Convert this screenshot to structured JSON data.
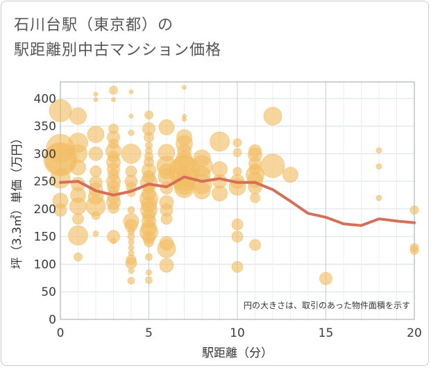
{
  "title": {
    "line1": "石川台駅（東京都）の",
    "line2": "駅距離別中古マンション価格"
  },
  "note": "円の大きさは、取引のあった物件面積を示す",
  "colors": {
    "bubble": "#f2bd63",
    "line": "#d4705a",
    "grid": "#d9dfe6",
    "plot_border": "#9aa4b0"
  },
  "chart_data": {
    "type": "scatter",
    "xlabel": "駅距離（分）",
    "ylabel": "坪（3.3㎡）単価（万円）",
    "xlim": [
      0,
      20
    ],
    "ylim": [
      0,
      430
    ],
    "x_ticks": [
      0,
      5,
      10,
      15,
      20
    ],
    "y_ticks": [
      0,
      50,
      100,
      150,
      200,
      250,
      300,
      350,
      400
    ],
    "grid": true,
    "series": [
      {
        "kind": "bubbles",
        "points": [
          [
            0,
            378,
            16
          ],
          [
            0,
            310,
            20
          ],
          [
            0,
            290,
            24
          ],
          [
            0,
            290,
            22
          ],
          [
            0,
            255,
            14
          ],
          [
            0,
            215,
            11
          ],
          [
            0,
            198,
            9
          ],
          [
            1,
            368,
            12
          ],
          [
            1,
            320,
            14
          ],
          [
            1,
            300,
            13
          ],
          [
            1,
            275,
            11
          ],
          [
            1,
            245,
            10
          ],
          [
            1,
            225,
            11
          ],
          [
            1,
            205,
            12
          ],
          [
            1,
            182,
            8
          ],
          [
            1,
            152,
            14
          ],
          [
            1,
            113,
            6
          ],
          [
            2,
            408,
            3
          ],
          [
            2,
            398,
            3
          ],
          [
            2,
            335,
            12
          ],
          [
            2,
            300,
            10
          ],
          [
            2,
            268,
            8
          ],
          [
            2,
            248,
            9
          ],
          [
            2,
            235,
            10
          ],
          [
            2,
            222,
            11
          ],
          [
            2,
            205,
            14
          ],
          [
            2,
            188,
            6
          ],
          [
            2,
            155,
            4
          ],
          [
            3,
            415,
            6
          ],
          [
            3,
            398,
            3
          ],
          [
            3,
            345,
            7
          ],
          [
            3,
            330,
            9
          ],
          [
            3,
            318,
            7
          ],
          [
            3,
            305,
            11
          ],
          [
            3,
            295,
            8
          ],
          [
            3,
            285,
            10
          ],
          [
            3,
            272,
            9
          ],
          [
            3,
            262,
            8
          ],
          [
            3,
            250,
            10
          ],
          [
            3,
            240,
            9
          ],
          [
            3,
            232,
            7
          ],
          [
            3,
            222,
            9
          ],
          [
            3,
            212,
            10
          ],
          [
            3,
            202,
            8
          ],
          [
            3,
            150,
            9
          ],
          [
            3,
            142,
            4
          ],
          [
            4,
            412,
            3
          ],
          [
            4,
            368,
            3
          ],
          [
            4,
            338,
            4
          ],
          [
            4,
            300,
            14
          ],
          [
            4,
            268,
            8
          ],
          [
            4,
            250,
            9
          ],
          [
            4,
            240,
            7
          ],
          [
            4,
            230,
            6
          ],
          [
            4,
            198,
            5
          ],
          [
            4,
            178,
            11
          ],
          [
            4,
            170,
            9
          ],
          [
            4,
            160,
            5
          ],
          [
            4,
            150,
            5
          ],
          [
            4,
            140,
            4
          ],
          [
            4,
            130,
            4
          ],
          [
            4,
            120,
            4
          ],
          [
            4,
            108,
            7
          ],
          [
            4,
            102,
            8
          ],
          [
            4,
            88,
            4
          ],
          [
            4,
            70,
            5
          ],
          [
            5,
            370,
            6
          ],
          [
            5,
            345,
            9
          ],
          [
            5,
            330,
            7
          ],
          [
            5,
            315,
            5
          ],
          [
            5,
            305,
            5
          ],
          [
            5,
            295,
            6
          ],
          [
            5,
            285,
            7
          ],
          [
            5,
            270,
            10
          ],
          [
            5,
            258,
            9
          ],
          [
            5,
            248,
            12
          ],
          [
            5,
            238,
            8
          ],
          [
            5,
            228,
            10
          ],
          [
            5,
            218,
            13
          ],
          [
            5,
            208,
            11
          ],
          [
            5,
            198,
            12
          ],
          [
            5,
            188,
            9
          ],
          [
            5,
            178,
            10
          ],
          [
            5,
            165,
            11
          ],
          [
            5,
            158,
            13
          ],
          [
            5,
            148,
            9
          ],
          [
            5,
            140,
            7
          ],
          [
            5,
            113,
            5
          ],
          [
            5,
            85,
            4
          ],
          [
            5,
            71,
            5
          ],
          [
            6,
            348,
            11
          ],
          [
            6,
            302,
            12
          ],
          [
            6,
            278,
            14
          ],
          [
            6,
            268,
            11
          ],
          [
            6,
            258,
            12
          ],
          [
            6,
            238,
            9
          ],
          [
            6,
            212,
            10
          ],
          [
            6,
            198,
            9
          ],
          [
            6,
            182,
            8
          ],
          [
            6,
            138,
            10
          ],
          [
            6,
            128,
            13
          ],
          [
            6,
            98,
            10
          ],
          [
            7,
            420,
            3
          ],
          [
            7,
            368,
            3
          ],
          [
            7,
            362,
            3
          ],
          [
            7,
            330,
            11
          ],
          [
            7,
            318,
            12
          ],
          [
            7,
            305,
            10
          ],
          [
            7,
            290,
            12
          ],
          [
            7,
            278,
            16
          ],
          [
            7,
            268,
            22
          ],
          [
            7,
            255,
            18
          ],
          [
            7,
            245,
            15
          ],
          [
            7,
            238,
            14
          ],
          [
            7,
            260,
            10
          ],
          [
            8,
            292,
            12
          ],
          [
            8,
            278,
            15
          ],
          [
            8,
            262,
            12
          ],
          [
            8,
            245,
            14
          ],
          [
            8,
            233,
            12
          ],
          [
            9,
            322,
            14
          ],
          [
            9,
            272,
            11
          ],
          [
            9,
            228,
            11
          ],
          [
            9,
            250,
            10
          ],
          [
            10,
            320,
            6
          ],
          [
            10,
            302,
            6
          ],
          [
            10,
            268,
            6
          ],
          [
            10,
            250,
            10
          ],
          [
            10,
            240,
            12
          ],
          [
            10,
            172,
            8
          ],
          [
            10,
            150,
            8
          ],
          [
            10,
            95,
            8
          ],
          [
            11,
            305,
            9
          ],
          [
            11,
            298,
            10
          ],
          [
            11,
            282,
            9
          ],
          [
            11,
            272,
            8
          ],
          [
            11,
            262,
            13
          ],
          [
            11,
            252,
            11
          ],
          [
            11,
            240,
            10
          ],
          [
            11,
            220,
            7
          ],
          [
            11,
            135,
            8
          ],
          [
            12,
            368,
            13
          ],
          [
            12,
            278,
            17
          ],
          [
            13,
            262,
            11
          ],
          [
            15,
            74,
            9
          ],
          [
            18,
            306,
            4
          ],
          [
            18,
            277,
            4
          ],
          [
            18,
            220,
            4
          ],
          [
            20,
            198,
            6
          ],
          [
            20,
            130,
            6
          ],
          [
            20,
            125,
            6
          ]
        ]
      },
      {
        "kind": "line",
        "x": [
          0,
          1,
          2,
          3,
          4,
          5,
          6,
          7,
          8,
          9,
          10,
          11,
          12,
          13,
          14,
          15,
          16,
          17,
          18,
          19,
          20
        ],
        "y": [
          248,
          250,
          233,
          225,
          232,
          245,
          240,
          258,
          250,
          255,
          248,
          248,
          235,
          214,
          192,
          185,
          173,
          170,
          182,
          178,
          175
        ]
      }
    ]
  }
}
